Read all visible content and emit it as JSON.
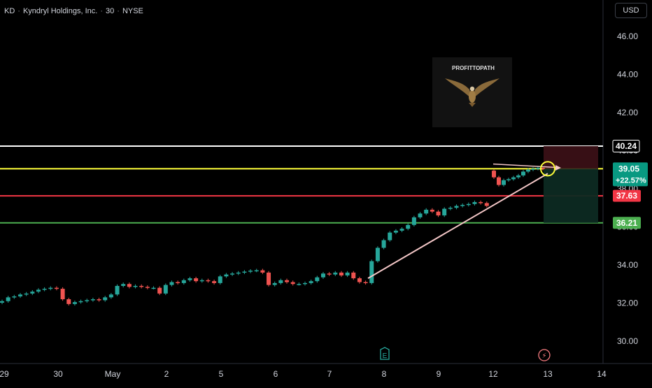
{
  "header": {
    "symbol": "KD",
    "company": "Kyndryl Holdings, Inc.",
    "interval": "30",
    "exchange": "NYSE",
    "sep": "·"
  },
  "toolbar": {
    "currency": "USD"
  },
  "watermark": {
    "text": "PROFITTOPATH"
  },
  "event_markers": {
    "earnings": "E",
    "dividend": "⚡"
  },
  "colors": {
    "up": "#26a69a",
    "down": "#ef5350",
    "white_line": "#ffffff",
    "yellow_line": "#ffff3a",
    "red_line": "#f23645",
    "green_line": "#4caf50",
    "trend_line": "#f7c1c1"
  },
  "chart_data": {
    "type": "candlestick",
    "title": "KD · Kyndryl Holdings, Inc. · 30 · NYSE",
    "y_axis": {
      "ticks": [
        30.0,
        32.0,
        34.0,
        36.0,
        38.0,
        40.0,
        42.0,
        44.0,
        46.0
      ],
      "labels": [
        "30.00",
        "32.00",
        "34.00",
        "36.00",
        "38.00",
        "40.00",
        "42.00",
        "44.00",
        "46.00"
      ],
      "ylim": [
        29.3,
        47.1
      ]
    },
    "x_axis": {
      "labels": [
        "29",
        "30",
        "May",
        "2",
        "5",
        "6",
        "7",
        "8",
        "9",
        "12",
        "13",
        "14"
      ]
    },
    "horizontal_levels": [
      {
        "name": "white",
        "value": 40.24,
        "label": "40.24"
      },
      {
        "name": "yellow",
        "value": 39.05,
        "label": "39.05",
        "sublabel": "+22.57%"
      },
      {
        "name": "red",
        "value": 37.63,
        "label": "37.63"
      },
      {
        "name": "green",
        "value": 36.21,
        "label": "36.21"
      }
    ],
    "series_close": [
      [
        0,
        32.1
      ],
      [
        1,
        32.3
      ],
      [
        2,
        32.35
      ],
      [
        3,
        32.45
      ],
      [
        4,
        32.5
      ],
      [
        5,
        32.6
      ],
      [
        6,
        32.7
      ],
      [
        7,
        32.75
      ],
      [
        8,
        32.8
      ],
      [
        9,
        32.75
      ],
      [
        10,
        32.2
      ],
      [
        11,
        31.95
      ],
      [
        12,
        32.05
      ],
      [
        13,
        32.1
      ],
      [
        14,
        32.15
      ],
      [
        15,
        32.2
      ],
      [
        16,
        32.15
      ],
      [
        17,
        32.3
      ],
      [
        18,
        32.45
      ],
      [
        19,
        32.9
      ],
      [
        20,
        33.0
      ],
      [
        21,
        32.85
      ],
      [
        22,
        32.9
      ],
      [
        23,
        32.85
      ],
      [
        24,
        32.8
      ],
      [
        25,
        32.8
      ],
      [
        26,
        32.5
      ],
      [
        27,
        32.95
      ],
      [
        28,
        33.1
      ],
      [
        29,
        33.05
      ],
      [
        30,
        33.2
      ],
      [
        31,
        33.3
      ],
      [
        32,
        33.15
      ],
      [
        33,
        33.2
      ],
      [
        34,
        33.15
      ],
      [
        35,
        33.05
      ],
      [
        36,
        33.4
      ],
      [
        37,
        33.5
      ],
      [
        38,
        33.55
      ],
      [
        39,
        33.6
      ],
      [
        40,
        33.65
      ],
      [
        41,
        33.7
      ],
      [
        42,
        33.72
      ],
      [
        43,
        33.6
      ],
      [
        44,
        32.95
      ],
      [
        45,
        33.05
      ],
      [
        46,
        33.2
      ],
      [
        47,
        33.1
      ],
      [
        48,
        33.0
      ],
      [
        49,
        33.0
      ],
      [
        50,
        33.05
      ],
      [
        51,
        33.15
      ],
      [
        52,
        33.35
      ],
      [
        53,
        33.55
      ],
      [
        54,
        33.5
      ],
      [
        55,
        33.6
      ],
      [
        56,
        33.45
      ],
      [
        57,
        33.6
      ],
      [
        58,
        33.3
      ],
      [
        59,
        33.1
      ],
      [
        60,
        33.05
      ],
      [
        61,
        34.2
      ],
      [
        62,
        34.9
      ],
      [
        63,
        35.3
      ],
      [
        64,
        35.7
      ],
      [
        65,
        35.8
      ],
      [
        66,
        35.9
      ],
      [
        67,
        36.1
      ],
      [
        68,
        36.5
      ],
      [
        69,
        36.7
      ],
      [
        70,
        36.9
      ],
      [
        71,
        36.8
      ],
      [
        72,
        36.6
      ],
      [
        73,
        36.95
      ],
      [
        74,
        37.0
      ],
      [
        75,
        37.1
      ],
      [
        76,
        37.15
      ],
      [
        77,
        37.2
      ],
      [
        78,
        37.3
      ],
      [
        79,
        37.25
      ],
      [
        80,
        37.1
      ],
      [
        81,
        38.6
      ],
      [
        82,
        38.2
      ],
      [
        83,
        38.45
      ],
      [
        84,
        38.5
      ],
      [
        85,
        38.6
      ],
      [
        86,
        38.7
      ],
      [
        87,
        38.9
      ],
      [
        88,
        39.0
      ],
      [
        89,
        39.05
      ],
      [
        90,
        39.1
      ],
      [
        91,
        39.05
      ]
    ]
  }
}
